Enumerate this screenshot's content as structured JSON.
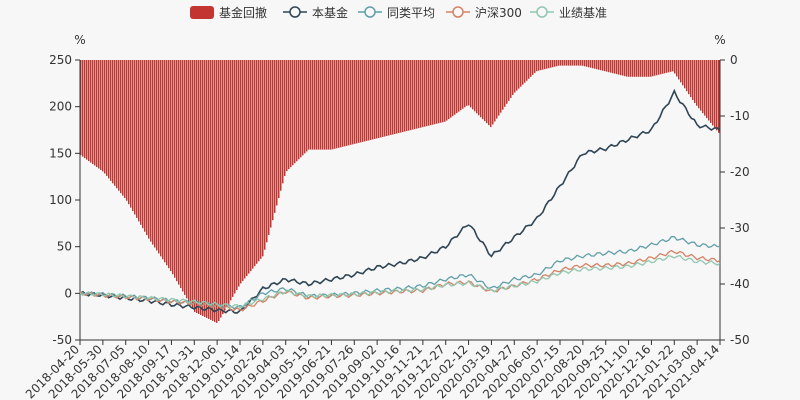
{
  "chart_data": {
    "type": "line",
    "legend_position": "top-center",
    "left_axis": {
      "unit_label": "%",
      "ticks": [
        250,
        200,
        150,
        100,
        50,
        0,
        -50
      ],
      "range": [
        -50,
        250
      ]
    },
    "right_axis": {
      "unit_label": "%",
      "ticks": [
        0,
        -10,
        -20,
        -30,
        -40,
        -50
      ],
      "range": [
        -50,
        0
      ]
    },
    "x_ticks": [
      "2018-04-20",
      "2018-05-30",
      "2018-07-05",
      "2018-08-10",
      "2018-09-17",
      "2018-10-31",
      "2018-12-06",
      "2019-01-14",
      "2019-02-26",
      "2019-04-03",
      "2019-05-15",
      "2019-06-21",
      "2019-07-26",
      "2019-09-02",
      "2019-10-16",
      "2019-11-21",
      "2019-12-27",
      "2020-02-12",
      "2020-03-19",
      "2020-04-27",
      "2020-06-05",
      "2020-07-15",
      "2020-08-20",
      "2020-09-25",
      "2020-11-10",
      "2020-12-16",
      "2021-01-22",
      "2021-03-08",
      "2021-04-14"
    ],
    "series": [
      {
        "name": "基金回撤",
        "kind": "bar",
        "axis": "right",
        "color": "#c23531",
        "values": [
          -17,
          -20,
          -25,
          -32,
          -38,
          -45,
          -47,
          -40,
          -35,
          -20,
          -16,
          -16,
          -15,
          -14,
          -13,
          -12,
          -11,
          -8,
          -12,
          -6,
          -2,
          -1,
          -1,
          -2,
          -3,
          -3,
          -2,
          -8,
          -13
        ]
      },
      {
        "name": "本基金",
        "kind": "line",
        "axis": "left",
        "color": "#2f4554",
        "values": [
          0,
          -2,
          -5,
          -8,
          -12,
          -15,
          -18,
          -20,
          5,
          15,
          10,
          15,
          20,
          28,
          32,
          38,
          50,
          75,
          40,
          60,
          80,
          115,
          150,
          155,
          165,
          175,
          215,
          180,
          175
        ]
      },
      {
        "name": "同类平均",
        "kind": "line",
        "axis": "left",
        "color": "#61a0a8",
        "values": [
          0,
          -1,
          -3,
          -5,
          -8,
          -10,
          -13,
          -15,
          0,
          5,
          -3,
          -2,
          0,
          3,
          5,
          8,
          15,
          20,
          5,
          15,
          20,
          35,
          40,
          43,
          45,
          52,
          60,
          52,
          50
        ]
      },
      {
        "name": "沪深300",
        "kind": "line",
        "axis": "left",
        "color": "#d48265",
        "values": [
          0,
          -2,
          -4,
          -6,
          -9,
          -11,
          -14,
          -18,
          -8,
          2,
          -5,
          -3,
          -2,
          0,
          2,
          3,
          10,
          12,
          2,
          8,
          15,
          25,
          30,
          30,
          32,
          38,
          45,
          38,
          35
        ]
      },
      {
        "name": "业绩基准",
        "kind": "line",
        "axis": "left",
        "color": "#91c7ae",
        "values": [
          0,
          -1,
          -3,
          -5,
          -7,
          -9,
          -12,
          -14,
          -6,
          2,
          -3,
          -2,
          -1,
          1,
          3,
          4,
          9,
          11,
          3,
          8,
          13,
          22,
          26,
          27,
          29,
          34,
          40,
          34,
          32
        ]
      }
    ]
  }
}
